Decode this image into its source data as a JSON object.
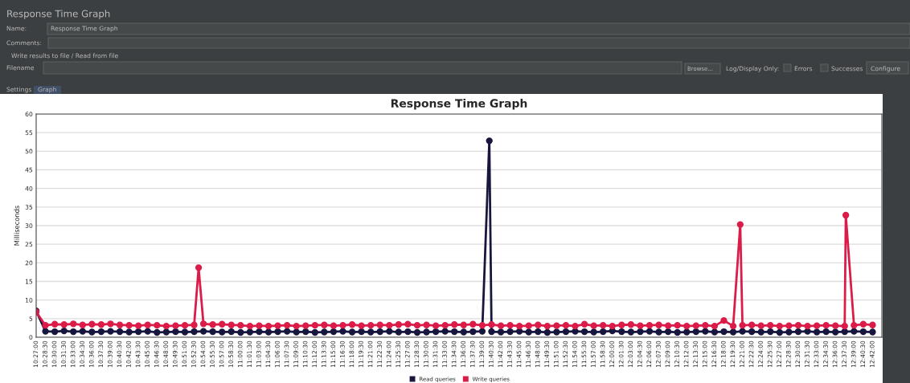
{
  "chart_data": {
    "type": "line",
    "title": "Response Time Graph",
    "ylabel": "Milliseconds",
    "annotations": [
      "Response Time Graph",
      "Name:",
      "Response Time Graph",
      "Comments:",
      "Write results to file / Read from file",
      "Filename",
      "Browse...",
      "Log/Display Only:",
      "Errors",
      "Successes",
      "Configure",
      "Settings",
      "Graph"
    ],
    "series": [
      {
        "name": "Read queries",
        "color": "#17163f",
        "x": [
          10.45,
          10.475,
          10.5,
          10.525,
          10.55,
          10.575,
          10.6,
          10.625,
          10.65,
          10.675,
          10.7,
          10.725,
          10.75,
          10.775,
          10.8,
          10.825,
          10.85,
          10.875,
          10.9,
          10.925,
          10.95,
          10.975,
          11.0,
          11.025,
          11.05,
          11.075,
          11.1,
          11.125,
          11.15,
          11.175,
          11.2,
          11.225,
          11.25,
          11.275,
          11.3,
          11.325,
          11.35,
          11.375,
          11.4,
          11.425,
          11.45,
          11.475,
          11.5,
          11.525,
          11.55,
          11.575,
          11.6,
          11.625,
          11.65,
          11.669,
          11.675,
          11.7,
          11.725,
          11.75,
          11.775,
          11.8,
          11.825,
          11.85,
          11.875,
          11.9,
          11.925,
          11.95,
          11.975,
          12.0,
          12.025,
          12.05,
          12.075,
          12.1,
          12.125,
          12.15,
          12.175,
          12.2,
          12.225,
          12.25,
          12.275,
          12.3,
          12.325,
          12.35,
          12.375,
          12.4,
          12.425,
          12.45,
          12.475,
          12.5,
          12.525,
          12.55,
          12.575,
          12.6,
          12.625,
          12.65,
          12.675,
          12.7
        ],
        "values": [
          7.1,
          1.6,
          1.5,
          1.7,
          1.5,
          1.6,
          1.4,
          1.5,
          1.6,
          1.5,
          1.4,
          1.5,
          1.6,
          1.3,
          1.4,
          1.5,
          1.4,
          1.5,
          1.6,
          1.5,
          1.4,
          1.5,
          1.3,
          1.4,
          1.5,
          1.4,
          1.5,
          1.6,
          1.4,
          1.5,
          1.3,
          1.4,
          1.5,
          1.6,
          1.4,
          1.5,
          1.4,
          1.5,
          1.6,
          1.4,
          1.5,
          1.3,
          1.4,
          1.5,
          1.6,
          1.5,
          1.4,
          1.5,
          1.6,
          52.8,
          1.5,
          1.4,
          1.5,
          1.6,
          1.4,
          1.5,
          1.3,
          1.4,
          1.5,
          1.6,
          1.5,
          1.4,
          1.5,
          1.7,
          1.5,
          1.4,
          1.5,
          1.6,
          1.4,
          1.5,
          1.3,
          1.4,
          1.5,
          1.6,
          1.4,
          1.5,
          1.4,
          1.6,
          1.5,
          1.4,
          1.5,
          1.3,
          1.4,
          1.5,
          1.6,
          1.4,
          1.5,
          1.4,
          1.5,
          1.6,
          1.5,
          1.4
        ]
      },
      {
        "name": "Write queries",
        "color": "#dc1c48",
        "x": [
          10.45,
          10.475,
          10.5,
          10.525,
          10.55,
          10.575,
          10.6,
          10.625,
          10.65,
          10.675,
          10.7,
          10.725,
          10.75,
          10.775,
          10.8,
          10.825,
          10.85,
          10.875,
          10.887,
          10.9,
          10.925,
          10.95,
          10.975,
          11.0,
          11.025,
          11.05,
          11.075,
          11.1,
          11.125,
          11.15,
          11.175,
          11.2,
          11.225,
          11.25,
          11.275,
          11.3,
          11.325,
          11.35,
          11.375,
          11.4,
          11.425,
          11.45,
          11.475,
          11.5,
          11.525,
          11.55,
          11.575,
          11.6,
          11.625,
          11.65,
          11.675,
          11.7,
          11.725,
          11.75,
          11.775,
          11.8,
          11.825,
          11.85,
          11.875,
          11.9,
          11.925,
          11.95,
          11.975,
          12.0,
          12.025,
          12.05,
          12.075,
          12.1,
          12.125,
          12.15,
          12.175,
          12.2,
          12.225,
          12.25,
          12.275,
          12.3,
          12.325,
          12.344,
          12.35,
          12.375,
          12.4,
          12.425,
          12.45,
          12.475,
          12.5,
          12.525,
          12.55,
          12.575,
          12.6,
          12.625,
          12.628,
          12.65,
          12.675,
          12.7
        ],
        "values": [
          6.8,
          3.2,
          3.5,
          3.4,
          3.6,
          3.3,
          3.5,
          3.4,
          3.6,
          3.3,
          3.2,
          3.1,
          3.3,
          3.2,
          3.0,
          3.1,
          3.2,
          3.3,
          18.7,
          3.6,
          3.4,
          3.5,
          3.3,
          3.2,
          3.0,
          3.1,
          3.0,
          3.1,
          3.2,
          3.0,
          3.1,
          3.2,
          3.3,
          3.1,
          3.2,
          3.4,
          3.1,
          3.2,
          3.3,
          3.2,
          3.4,
          3.5,
          3.2,
          3.3,
          3.1,
          3.2,
          3.4,
          3.3,
          3.5,
          3.2,
          3.4,
          3.1,
          3.2,
          3.0,
          3.1,
          3.3,
          3.0,
          3.1,
          3.2,
          3.0,
          3.5,
          3.1,
          3.2,
          3.0,
          3.3,
          3.4,
          3.1,
          3.2,
          3.3,
          3.1,
          3.2,
          3.0,
          3.1,
          3.2,
          3.0,
          4.5,
          3.0,
          30.3,
          3.2,
          3.3,
          3.1,
          3.2,
          3.0,
          3.1,
          3.2,
          3.0,
          3.1,
          3.2,
          3.1,
          3.0,
          32.8,
          3.2,
          3.5,
          3.3
        ]
      }
    ],
    "xlim": [
      10.45,
      12.725
    ],
    "xticks": [
      {
        "value": 10.45,
        "label": "10:27:00"
      },
      {
        "value": 10.475,
        "label": "10:28:30"
      },
      {
        "value": 10.5,
        "label": "10:30:00"
      },
      {
        "value": 10.525,
        "label": "10:31:30"
      },
      {
        "value": 10.55,
        "label": "10:33:00"
      },
      {
        "value": 10.575,
        "label": "10:34:30"
      },
      {
        "value": 10.6,
        "label": "10:36:00"
      },
      {
        "value": 10.625,
        "label": "10:37:30"
      },
      {
        "value": 10.65,
        "label": "10:39:00"
      },
      {
        "value": 10.675,
        "label": "10:40:30"
      },
      {
        "value": 10.7,
        "label": "10:42:00"
      },
      {
        "value": 10.725,
        "label": "10:43:30"
      },
      {
        "value": 10.75,
        "label": "10:45:00"
      },
      {
        "value": 10.775,
        "label": "10:46:30"
      },
      {
        "value": 10.8,
        "label": "10:48:00"
      },
      {
        "value": 10.825,
        "label": "10:49:30"
      },
      {
        "value": 10.85,
        "label": "10:51:00"
      },
      {
        "value": 10.875,
        "label": "10:52:30"
      },
      {
        "value": 10.9,
        "label": "10:54:00"
      },
      {
        "value": 10.925,
        "label": "10:55:30"
      },
      {
        "value": 10.95,
        "label": "10:57:00"
      },
      {
        "value": 10.975,
        "label": "10:58:30"
      },
      {
        "value": 11.0,
        "label": "11:00:00"
      },
      {
        "value": 11.025,
        "label": "11:01:30"
      },
      {
        "value": 11.05,
        "label": "11:03:00"
      },
      {
        "value": 11.075,
        "label": "11:04:30"
      },
      {
        "value": 11.1,
        "label": "11:06:00"
      },
      {
        "value": 11.125,
        "label": "11:07:30"
      },
      {
        "value": 11.15,
        "label": "11:09:00"
      },
      {
        "value": 11.175,
        "label": "11:10:30"
      },
      {
        "value": 11.2,
        "label": "11:12:00"
      },
      {
        "value": 11.225,
        "label": "11:13:30"
      },
      {
        "value": 11.25,
        "label": "11:15:00"
      },
      {
        "value": 11.275,
        "label": "11:16:30"
      },
      {
        "value": 11.3,
        "label": "11:18:00"
      },
      {
        "value": 11.325,
        "label": "11:19:30"
      },
      {
        "value": 11.35,
        "label": "11:21:00"
      },
      {
        "value": 11.375,
        "label": "11:22:30"
      },
      {
        "value": 11.4,
        "label": "11:24:00"
      },
      {
        "value": 11.425,
        "label": "11:25:30"
      },
      {
        "value": 11.45,
        "label": "11:27:00"
      },
      {
        "value": 11.475,
        "label": "11:28:30"
      },
      {
        "value": 11.5,
        "label": "11:30:00"
      },
      {
        "value": 11.525,
        "label": "11:31:30"
      },
      {
        "value": 11.55,
        "label": "11:33:00"
      },
      {
        "value": 11.575,
        "label": "11:34:30"
      },
      {
        "value": 11.6,
        "label": "11:36:00"
      },
      {
        "value": 11.625,
        "label": "11:37:30"
      },
      {
        "value": 11.65,
        "label": "11:39:00"
      },
      {
        "value": 11.675,
        "label": "11:40:30"
      },
      {
        "value": 11.7,
        "label": "11:42:00"
      },
      {
        "value": 11.725,
        "label": "11:43:30"
      },
      {
        "value": 11.75,
        "label": "11:45:00"
      },
      {
        "value": 11.775,
        "label": "11:46:30"
      },
      {
        "value": 11.8,
        "label": "11:48:00"
      },
      {
        "value": 11.825,
        "label": "11:49:30"
      },
      {
        "value": 11.85,
        "label": "11:51:00"
      },
      {
        "value": 11.875,
        "label": "11:52:30"
      },
      {
        "value": 11.9,
        "label": "11:54:00"
      },
      {
        "value": 11.925,
        "label": "11:55:30"
      },
      {
        "value": 11.95,
        "label": "11:57:00"
      },
      {
        "value": 11.975,
        "label": "11:58:30"
      },
      {
        "value": 12.0,
        "label": "12:00:00"
      },
      {
        "value": 12.025,
        "label": "12:01:30"
      },
      {
        "value": 12.05,
        "label": "12:03:00"
      },
      {
        "value": 12.075,
        "label": "12:04:30"
      },
      {
        "value": 12.1,
        "label": "12:06:00"
      },
      {
        "value": 12.125,
        "label": "12:07:30"
      },
      {
        "value": 12.15,
        "label": "12:09:00"
      },
      {
        "value": 12.175,
        "label": "12:10:30"
      },
      {
        "value": 12.2,
        "label": "12:12:00"
      },
      {
        "value": 12.225,
        "label": "12:13:30"
      },
      {
        "value": 12.25,
        "label": "12:15:00"
      },
      {
        "value": 12.275,
        "label": "12:16:30"
      },
      {
        "value": 12.3,
        "label": "12:18:00"
      },
      {
        "value": 12.325,
        "label": "12:19:30"
      },
      {
        "value": 12.35,
        "label": "12:21:00"
      },
      {
        "value": 12.375,
        "label": "12:22:30"
      },
      {
        "value": 12.4,
        "label": "12:24:00"
      },
      {
        "value": 12.425,
        "label": "12:25:30"
      },
      {
        "value": 12.45,
        "label": "12:27:00"
      },
      {
        "value": 12.475,
        "label": "12:28:30"
      },
      {
        "value": 12.5,
        "label": "12:30:00"
      },
      {
        "value": 12.525,
        "label": "12:31:30"
      },
      {
        "value": 12.55,
        "label": "12:33:00"
      },
      {
        "value": 12.575,
        "label": "12:34:30"
      },
      {
        "value": 12.6,
        "label": "12:36:00"
      },
      {
        "value": 12.625,
        "label": "12:37:30"
      },
      {
        "value": 12.65,
        "label": "12:39:00"
      },
      {
        "value": 12.675,
        "label": "12:40:30"
      },
      {
        "value": 12.7,
        "label": "12:42:00"
      }
    ],
    "ylim": [
      0,
      60
    ],
    "yticks": [
      0,
      5,
      10,
      15,
      20,
      25,
      30,
      35,
      40,
      45,
      50,
      55,
      60
    ],
    "grid": "y",
    "legend": "bottom",
    "marker": "circle",
    "line_style": "solid"
  }
}
